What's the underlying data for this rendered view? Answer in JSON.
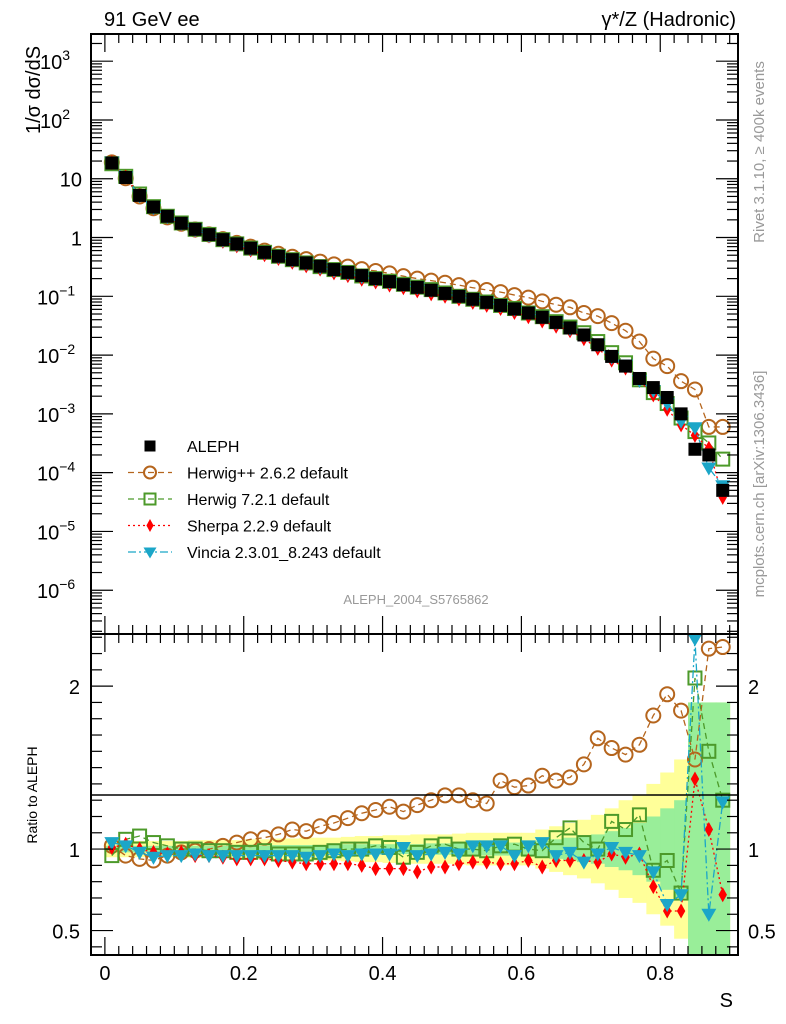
{
  "chart_data": [
    {
      "panel": "main",
      "type": "scatter",
      "title_left": "91 GeV ee",
      "title_right": "γ*/Z (Hadronic)",
      "xlabel": "S",
      "ylabel": "1/σ  dσ/dS",
      "yscale": "log",
      "xlim": [
        -0.02,
        0.912
      ],
      "ylim": [
        1.8e-07,
        2900
      ],
      "y_ticks": [
        {
          "v": 1000,
          "base": "10",
          "exp": "3"
        },
        {
          "v": 100,
          "base": "10",
          "exp": "2"
        },
        {
          "v": 10,
          "base": "10",
          "exp": ""
        },
        {
          "v": 1,
          "base": "1",
          "exp": ""
        },
        {
          "v": 0.1,
          "base": "10",
          "exp": "−1"
        },
        {
          "v": 0.01,
          "base": "10",
          "exp": "−2"
        },
        {
          "v": 0.001,
          "base": "10",
          "exp": "−3"
        },
        {
          "v": 0.0001,
          "base": "10",
          "exp": "−4"
        },
        {
          "v": 1e-05,
          "base": "10",
          "exp": "−5"
        },
        {
          "v": 1e-06,
          "base": "10",
          "exp": "−6"
        }
      ],
      "watermark": "ALEPH_2004_S5765862",
      "side_label_top": "Rivet 3.1.10, ≥ 400k events",
      "side_label_bottom": "mcplots.cern.ch [arXiv:1306.3436]",
      "legend_position": "lower-left",
      "x": [
        0.01,
        0.03,
        0.05,
        0.07,
        0.09,
        0.11,
        0.13,
        0.15,
        0.17,
        0.19,
        0.21,
        0.23,
        0.25,
        0.27,
        0.29,
        0.31,
        0.33,
        0.35,
        0.37,
        0.39,
        0.41,
        0.43,
        0.45,
        0.47,
        0.49,
        0.51,
        0.53,
        0.55,
        0.57,
        0.59,
        0.61,
        0.63,
        0.65,
        0.67,
        0.69,
        0.71,
        0.73,
        0.75,
        0.77,
        0.79,
        0.81,
        0.83,
        0.85,
        0.87,
        0.89
      ],
      "series": [
        {
          "name": "ALEPH",
          "color": "#000000",
          "marker": "square-filled",
          "line": "none",
          "values": [
            18.5,
            10.5,
            5.2,
            3.3,
            2.3,
            1.75,
            1.38,
            1.12,
            0.92,
            0.78,
            0.66,
            0.56,
            0.48,
            0.42,
            0.37,
            0.325,
            0.285,
            0.255,
            0.225,
            0.2,
            0.178,
            0.158,
            0.142,
            0.127,
            0.112,
            0.1,
            0.089,
            0.079,
            0.07,
            0.061,
            0.052,
            0.044,
            0.036,
            0.029,
            0.022,
            0.015,
            0.0095,
            0.0065,
            0.004,
            0.0028,
            0.0019,
            0.001,
            0.00025,
            0.0002,
            5e-05
          ]
        },
        {
          "name": "Herwig++ 2.6.2 default",
          "color": "#b5651d",
          "marker": "circle-open",
          "line": "dashed",
          "values": [
            19,
            10.2,
            5.0,
            3.15,
            2.2,
            1.72,
            1.37,
            1.13,
            0.94,
            0.81,
            0.7,
            0.6,
            0.53,
            0.47,
            0.43,
            0.39,
            0.35,
            0.32,
            0.29,
            0.27,
            0.245,
            0.22,
            0.2,
            0.185,
            0.17,
            0.155,
            0.14,
            0.128,
            0.118,
            0.105,
            0.095,
            0.082,
            0.072,
            0.065,
            0.052,
            0.046,
            0.035,
            0.026,
            0.017,
            0.0087,
            0.0065,
            0.0036,
            0.0026,
            0.0006,
            0.0006
          ]
        },
        {
          "name": "Herwig 7.2.1 default",
          "color": "#4c9a2a",
          "marker": "square-open",
          "line": "dashed",
          "values": [
            18,
            11,
            5.5,
            3.35,
            2.3,
            1.77,
            1.38,
            1.13,
            0.92,
            0.78,
            0.66,
            0.56,
            0.48,
            0.42,
            0.37,
            0.32,
            0.285,
            0.255,
            0.222,
            0.2,
            0.18,
            0.16,
            0.143,
            0.13,
            0.114,
            0.1,
            0.089,
            0.08,
            0.07,
            0.062,
            0.052,
            0.045,
            0.037,
            0.03,
            0.024,
            0.017,
            0.011,
            0.0074,
            0.0038,
            0.0023,
            0.0015,
            0.00085,
            0.0005,
            0.00032,
            0.00017
          ]
        },
        {
          "name": "Sherpa 2.2.9 default",
          "color": "#ff0000",
          "marker": "diamond-filled",
          "line": "dotted",
          "values": [
            18.8,
            10.7,
            5.2,
            3.15,
            2.2,
            1.68,
            1.32,
            1.06,
            0.86,
            0.72,
            0.61,
            0.51,
            0.44,
            0.38,
            0.33,
            0.29,
            0.25,
            0.225,
            0.195,
            0.175,
            0.155,
            0.14,
            0.124,
            0.11,
            0.1,
            0.09,
            0.079,
            0.07,
            0.062,
            0.053,
            0.045,
            0.038,
            0.031,
            0.026,
            0.019,
            0.013,
            0.0082,
            0.006,
            0.0037,
            0.0021,
            0.0012,
            0.00065,
            0.00043,
            0.00026,
            3.8e-05
          ]
        },
        {
          "name": "Vincia 2.3.01_8.243 default",
          "color": "#1ba6c8",
          "marker": "triangle-down-filled",
          "line": "dashdot",
          "values": [
            19.2,
            10.7,
            5.1,
            3.2,
            2.25,
            1.72,
            1.35,
            1.09,
            0.9,
            0.76,
            0.64,
            0.55,
            0.47,
            0.41,
            0.36,
            0.31,
            0.275,
            0.245,
            0.215,
            0.195,
            0.173,
            0.157,
            0.14,
            0.126,
            0.112,
            0.1,
            0.088,
            0.079,
            0.069,
            0.06,
            0.053,
            0.045,
            0.035,
            0.028,
            0.022,
            0.015,
            0.0092,
            0.0068,
            0.0037,
            0.0025,
            0.0015,
            0.00075,
            0.00058,
            0.00012,
            6e-05
          ]
        }
      ]
    },
    {
      "panel": "ratio",
      "type": "scatter",
      "ylabel": "Ratio to ALEPH",
      "xlabel": "S",
      "ylim": [
        0.35,
        2.32
      ],
      "y_ticks": [
        {
          "v": 0.5,
          "label": "0.5"
        },
        {
          "v": 1,
          "label": "1"
        },
        {
          "v": 2,
          "label": "2"
        }
      ],
      "x_ticks": [
        {
          "v": 0,
          "label": "0"
        },
        {
          "v": 0.2,
          "label": "0.2"
        },
        {
          "v": 0.4,
          "label": "0.4"
        },
        {
          "v": 0.6,
          "label": "0.6"
        },
        {
          "v": 0.8,
          "label": "0.8"
        }
      ],
      "band_inner_color": "#99ee99",
      "band_outer_color": "#ffff99",
      "band_inner_halfwidth": [
        0.02,
        0.02,
        0.02,
        0.02,
        0.02,
        0.02,
        0.02,
        0.02,
        0.02,
        0.02,
        0.02,
        0.02,
        0.025,
        0.025,
        0.025,
        0.025,
        0.025,
        0.03,
        0.03,
        0.03,
        0.03,
        0.03,
        0.03,
        0.035,
        0.035,
        0.035,
        0.035,
        0.04,
        0.04,
        0.04,
        0.04,
        0.05,
        0.06,
        0.07,
        0.08,
        0.09,
        0.11,
        0.13,
        0.16,
        0.2,
        0.25,
        0.3,
        0.9,
        0.9,
        0.9
      ],
      "band_outer_halfwidth": [
        0.05,
        0.05,
        0.05,
        0.05,
        0.05,
        0.05,
        0.055,
        0.055,
        0.055,
        0.055,
        0.06,
        0.06,
        0.065,
        0.065,
        0.07,
        0.07,
        0.07,
        0.075,
        0.08,
        0.08,
        0.085,
        0.085,
        0.09,
        0.09,
        0.09,
        0.095,
        0.1,
        0.1,
        0.1,
        0.1,
        0.1,
        0.12,
        0.14,
        0.16,
        0.18,
        0.21,
        0.25,
        0.3,
        0.33,
        0.4,
        0.47,
        0.55,
        0.9,
        0.9,
        0.9
      ],
      "series": [
        {
          "name": "Herwig++ 2.6.2 default",
          "values": [
            1.02,
            0.96,
            0.94,
            0.93,
            0.96,
            0.98,
            0.99,
            1.0,
            1.02,
            1.04,
            1.06,
            1.07,
            1.09,
            1.12,
            1.11,
            1.14,
            1.16,
            1.19,
            1.22,
            1.24,
            1.26,
            1.23,
            1.27,
            1.3,
            1.33,
            1.33,
            1.3,
            1.28,
            1.42,
            1.38,
            1.39,
            1.45,
            1.42,
            1.44,
            1.52,
            1.68,
            1.62,
            1.58,
            1.64,
            1.82,
            1.95,
            1.85,
            1.55,
            2.23,
            2.24
          ]
        },
        {
          "name": "Herwig 7.2.1 default",
          "values": [
            0.96,
            1.06,
            1.08,
            1.04,
            1.02,
            1.0,
            1.0,
            0.99,
            0.99,
            0.98,
            0.98,
            0.99,
            0.97,
            0.97,
            0.97,
            0.98,
            0.99,
            1.0,
            1.0,
            1.02,
            1.01,
            0.95,
            0.98,
            1.02,
            1.03,
            1.0,
            1.0,
            0.99,
            1.02,
            1.03,
            1.0,
            0.99,
            1.07,
            1.13,
            1.04,
            1.0,
            1.17,
            1.12,
            1.21,
            0.87,
            0.93,
            0.73,
            2.05,
            1.6,
            1.3
          ]
        },
        {
          "name": "Sherpa 2.2.9 default",
          "values": [
            1.01,
            1.03,
            1.0,
            0.98,
            0.97,
            0.98,
            0.96,
            0.96,
            0.95,
            0.94,
            0.94,
            0.94,
            0.93,
            0.92,
            0.91,
            0.91,
            0.91,
            0.91,
            0.9,
            0.88,
            0.88,
            0.88,
            0.86,
            0.89,
            0.89,
            0.91,
            0.92,
            0.92,
            0.91,
            0.91,
            0.93,
            0.89,
            0.93,
            0.93,
            0.93,
            0.92,
            0.97,
            0.95,
            0.97,
            0.77,
            0.62,
            0.62,
            1.43,
            1.12,
            0.72
          ]
        },
        {
          "name": "Vincia 2.3.01_8.243 default",
          "values": [
            1.04,
            1.02,
            0.98,
            0.95,
            0.96,
            0.96,
            0.97,
            0.96,
            0.96,
            0.96,
            0.96,
            0.96,
            0.96,
            0.96,
            0.95,
            0.96,
            0.97,
            0.96,
            0.97,
            0.97,
            0.97,
            1.01,
            0.96,
            0.97,
            0.98,
            0.97,
            1.02,
            1.02,
            1.02,
            0.96,
            1.02,
            1.04,
            0.96,
            0.98,
            0.92,
            0.97,
            1.01,
            0.98,
            0.96,
            0.86,
            0.66,
            0.72,
            2.29,
            0.6,
            1.29
          ]
        }
      ]
    }
  ]
}
